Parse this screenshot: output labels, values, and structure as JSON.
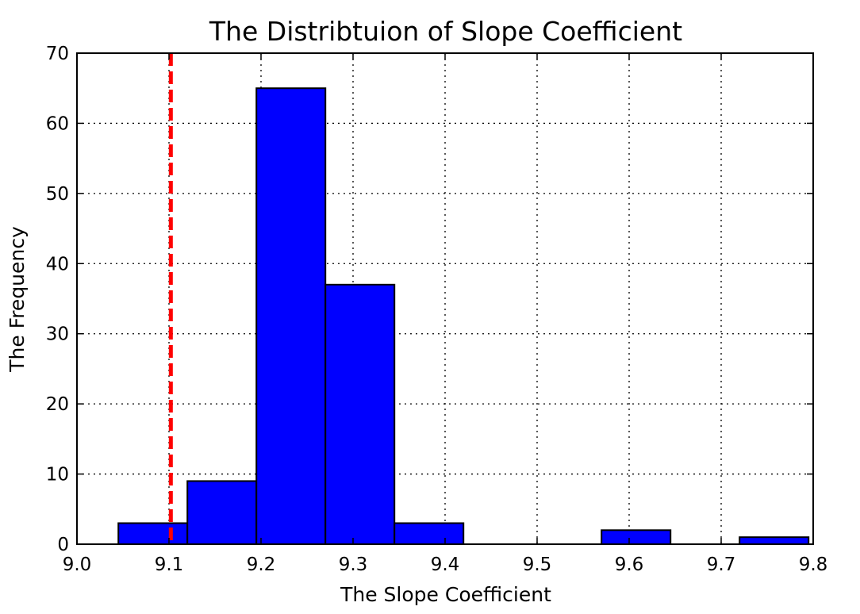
{
  "chart_data": {
    "type": "bar",
    "title": "The Distribtuion of Slope Coefficient",
    "xlabel": "The Slope Coefficient",
    "ylabel": "The Frequency",
    "xlim": [
      9.0,
      9.8
    ],
    "ylim": [
      0,
      70
    ],
    "xticks": [
      "9.0",
      "9.1",
      "9.2",
      "9.3",
      "9.4",
      "9.5",
      "9.6",
      "9.7",
      "9.8"
    ],
    "yticks": [
      "0",
      "10",
      "20",
      "30",
      "40",
      "50",
      "60",
      "70"
    ],
    "grid": true,
    "bins": [
      {
        "x0": 9.045,
        "x1": 9.12,
        "count": 3
      },
      {
        "x0": 9.12,
        "x1": 9.195,
        "count": 9
      },
      {
        "x0": 9.195,
        "x1": 9.27,
        "count": 65
      },
      {
        "x0": 9.27,
        "x1": 9.345,
        "count": 37
      },
      {
        "x0": 9.345,
        "x1": 9.42,
        "count": 3
      },
      {
        "x0": 9.42,
        "x1": 9.495,
        "count": 0
      },
      {
        "x0": 9.495,
        "x1": 9.57,
        "count": 0
      },
      {
        "x0": 9.57,
        "x1": 9.645,
        "count": 2
      },
      {
        "x0": 9.645,
        "x1": 9.72,
        "count": 0
      },
      {
        "x0": 9.72,
        "x1": 9.795,
        "count": 1
      }
    ],
    "reference_line": {
      "x": 9.102,
      "style": "dashed",
      "color": "#ff0000"
    },
    "bar_color": "#0000ff"
  }
}
